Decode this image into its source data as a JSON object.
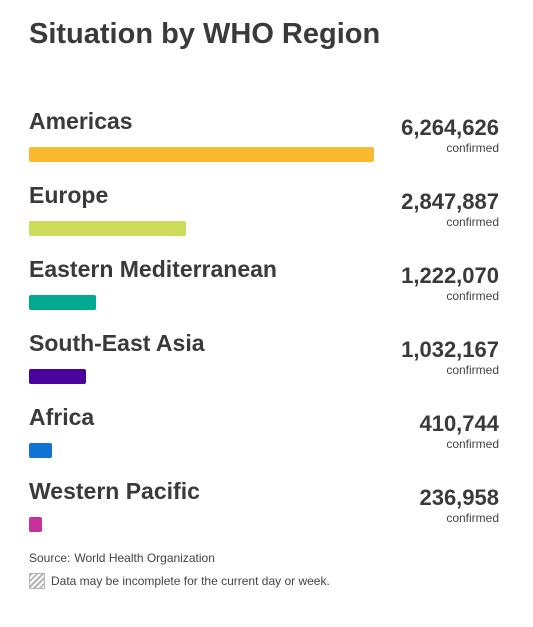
{
  "title": "Situation by WHO Region",
  "chart_data": {
    "type": "bar",
    "orientation": "horizontal",
    "categories": [
      "Americas",
      "Europe",
      "Eastern Mediterranean",
      "South-East Asia",
      "Africa",
      "Western Pacific"
    ],
    "values": [
      6264626,
      2847887,
      1222070,
      1032167,
      410744,
      236958
    ],
    "value_labels": [
      "6,264,626",
      "2,847,887",
      "1,222,070",
      "1,032,167",
      "410,744",
      "236,958"
    ],
    "value_unit": "confirmed",
    "colors": [
      "#fbb92e",
      "#cedc5b",
      "#00a98f",
      "#4a029c",
      "#1073d5",
      "#c5329b"
    ],
    "grid": false,
    "legend": "none"
  },
  "footer": {
    "source_label": "Source:",
    "source_value": "World Health Organization",
    "note": "Data may be incomplete for the current day or week."
  }
}
